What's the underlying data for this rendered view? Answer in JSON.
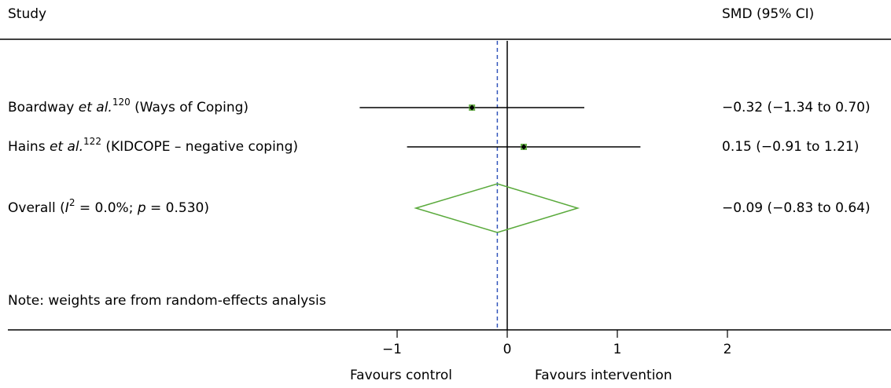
{
  "chart_data": {
    "type": "forest",
    "header_study": "Study",
    "header_effect": "SMD (95% CI)",
    "studies": [
      {
        "author": "Boardway",
        "etal": "et al.",
        "ref": "120",
        "measure": "(Ways of Coping)",
        "estimate": -0.32,
        "lower": -1.34,
        "upper": 0.7,
        "value_label": "−0.32 (−1.34 to 0.70)"
      },
      {
        "author": "Hains",
        "etal": "et al.",
        "ref": "122",
        "measure": "(KIDCOPE – negative coping)",
        "estimate": 0.15,
        "lower": -0.91,
        "upper": 1.21,
        "value_label": "0.15 (−0.91 to 1.21)"
      }
    ],
    "overall": {
      "pre": "Overall (",
      "i": "I",
      "sup": "2",
      "mid": " = 0.0%; ",
      "p": "p",
      "post": " = 0.530)",
      "estimate": -0.09,
      "lower": -0.83,
      "upper": 0.64,
      "value_label": "−0.09 (−0.83 to 0.64)"
    },
    "note": "Note: weights are from random-effects analysis",
    "null_line": 0,
    "xlim": [
      -2.5,
      2.5
    ],
    "xticks": [
      {
        "value": -1,
        "label": "−1"
      },
      0,
      1,
      2
    ],
    "xlabel_left": "Favours control",
    "xlabel_right": "Favours intervention",
    "marker_color": "#6ab04c",
    "diamond_color": "#5aaa3c",
    "pooled_line_color": "#3355bb"
  }
}
